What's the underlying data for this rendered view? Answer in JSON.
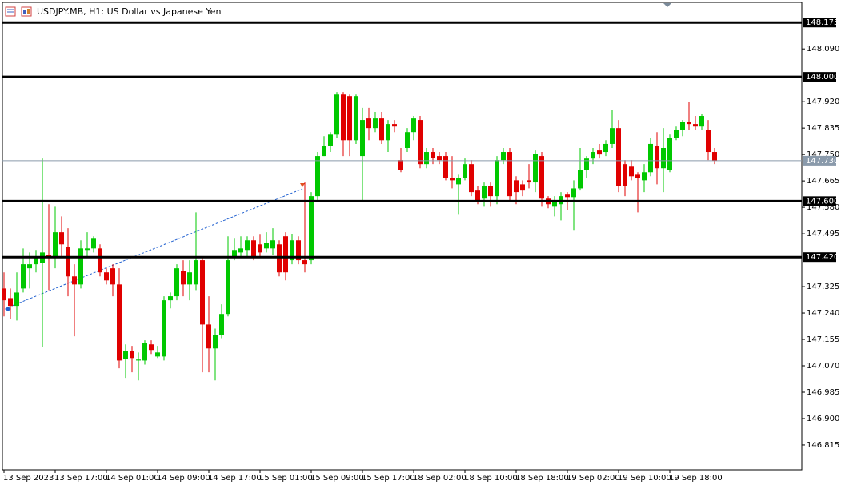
{
  "chart_data": {
    "type": "candlestick",
    "title": "USDJPY.MB, H1:  US Dollar vs Japanese Yen",
    "categories": [
      "13 Sep 2023",
      null,
      null,
      null,
      null,
      null,
      null,
      null,
      "13 Sep 17:00",
      null,
      null,
      null,
      null,
      null,
      null,
      null,
      "14 Sep 01:00",
      null,
      null,
      null,
      null,
      null,
      null,
      null,
      "14 Sep 09:00",
      null,
      null,
      null,
      null,
      null,
      null,
      null,
      "14 Sep 17:00",
      null,
      null,
      null,
      null,
      null,
      null,
      null,
      "15 Sep 01:00",
      null,
      null,
      null,
      null,
      null,
      null,
      null,
      "15 Sep 09:00",
      null,
      null,
      null,
      null,
      null,
      null,
      null,
      "15 Sep 17:00",
      null,
      null,
      null,
      null,
      null,
      null,
      null,
      "18 Sep 02:00",
      null,
      null,
      null,
      null,
      null,
      null,
      null,
      "18 Sep 10:00",
      null,
      null,
      null,
      null,
      null,
      null,
      null,
      "18 Sep 18:00",
      null,
      null,
      null,
      null,
      null,
      null,
      null,
      "19 Sep 02:00",
      null,
      null,
      null,
      null,
      null,
      null,
      null,
      "19 Sep 10:00",
      null,
      null,
      null,
      null,
      null,
      null,
      null,
      "19 Sep 18:00",
      null,
      null,
      null,
      null,
      null,
      null,
      null
    ],
    "open": [
      147.319,
      147.288,
      147.263,
      147.319,
      147.384,
      147.397,
      147.402,
      147.428,
      147.417,
      147.5,
      147.453,
      147.358,
      147.332,
      147.443,
      147.448,
      147.448,
      147.371,
      147.384,
      147.332,
      147.093,
      147.118,
      147.087,
      147.087,
      147.139,
      147.1,
      147.1,
      147.281,
      147.294,
      147.376,
      147.332,
      147.332,
      147.41,
      147.203,
      147.126,
      147.17,
      147.237,
      147.422,
      147.435,
      147.443,
      147.474,
      147.461,
      147.448,
      147.448,
      147.461,
      147.487,
      147.41,
      147.474,
      147.41,
      147.41,
      147.616,
      147.745,
      147.778,
      147.814,
      147.943,
      147.938,
      147.796,
      147.745,
      147.866,
      147.835,
      147.866,
      147.796,
      147.848,
      147.732,
      147.771,
      147.822,
      147.861,
      147.719,
      147.758,
      147.745,
      147.745,
      147.675,
      147.654,
      147.675,
      147.719,
      147.634,
      147.608,
      147.649,
      147.616,
      147.732,
      147.758,
      147.667,
      147.654,
      147.667,
      147.66,
      147.745,
      147.608,
      147.582,
      147.59,
      147.621,
      147.613,
      147.641,
      147.701,
      147.737,
      147.763,
      147.758,
      147.784,
      147.835,
      147.719,
      147.711,
      147.685,
      147.667,
      147.693,
      147.778,
      147.706,
      147.701,
      147.804,
      147.83,
      147.856,
      147.848,
      147.84,
      147.83,
      147.758
    ],
    "high": [
      147.371,
      147.319,
      147.371,
      147.448,
      147.435,
      147.443,
      147.737,
      147.59,
      147.582,
      147.551,
      147.513,
      147.397,
      147.474,
      147.5,
      147.487,
      147.461,
      147.384,
      147.397,
      147.384,
      147.139,
      147.134,
      147.113,
      147.152,
      147.152,
      147.134,
      147.294,
      147.306,
      147.397,
      147.41,
      147.41,
      147.564,
      147.422,
      147.294,
      147.19,
      147.268,
      147.487,
      147.479,
      147.487,
      147.487,
      147.487,
      147.492,
      147.5,
      147.513,
      147.474,
      147.5,
      147.495,
      147.487,
      147.66,
      147.629,
      147.758,
      147.809,
      147.822,
      147.951,
      147.951,
      147.943,
      147.943,
      147.9,
      147.9,
      147.887,
      147.887,
      147.861,
      147.861,
      147.771,
      147.835,
      147.874,
      147.874,
      147.771,
      147.771,
      147.758,
      147.758,
      147.745,
      147.685,
      147.737,
      147.732,
      147.649,
      147.66,
      147.66,
      147.745,
      147.771,
      147.771,
      147.68,
      147.667,
      147.719,
      147.763,
      147.758,
      147.616,
      147.616,
      147.629,
      147.629,
      147.667,
      147.771,
      147.745,
      147.771,
      147.784,
      147.796,
      147.892,
      147.861,
      147.732,
      147.732,
      147.693,
      147.719,
      147.804,
      147.822,
      147.835,
      147.814,
      147.84,
      147.861,
      147.92,
      147.874,
      147.881,
      147.861,
      147.771
    ],
    "low": [
      147.229,
      147.221,
      147.216,
      147.306,
      147.319,
      147.371,
      147.131,
      147.314,
      147.384,
      147.422,
      147.294,
      147.165,
      147.319,
      147.422,
      147.435,
      147.358,
      147.332,
      147.294,
      147.062,
      147.031,
      147.049,
      147.023,
      147.074,
      147.108,
      147.095,
      147.087,
      147.255,
      147.281,
      147.294,
      147.281,
      147.314,
      147.049,
      147.049,
      147.023,
      147.159,
      147.229,
      147.41,
      147.422,
      147.422,
      147.41,
      147.417,
      147.435,
      147.428,
      147.358,
      147.345,
      147.397,
      147.397,
      147.371,
      147.397,
      147.603,
      147.745,
      147.758,
      147.804,
      147.745,
      147.745,
      147.784,
      147.603,
      147.796,
      147.822,
      147.784,
      147.758,
      147.822,
      147.693,
      147.758,
      147.796,
      147.706,
      147.706,
      147.719,
      147.719,
      147.667,
      147.641,
      147.556,
      147.667,
      147.616,
      147.59,
      147.582,
      147.582,
      147.59,
      147.719,
      147.603,
      147.59,
      147.616,
      147.641,
      147.629,
      147.582,
      147.577,
      147.551,
      147.538,
      147.572,
      147.505,
      147.634,
      147.675,
      147.719,
      147.737,
      147.745,
      147.771,
      147.629,
      147.616,
      147.667,
      147.564,
      147.629,
      147.68,
      147.654,
      147.629,
      147.693,
      147.796,
      147.809,
      147.83,
      147.83,
      147.83,
      147.732,
      147.719
    ],
    "close": [
      147.281,
      147.263,
      147.306,
      147.397,
      147.397,
      147.422,
      147.435,
      147.417,
      147.5,
      147.461,
      147.358,
      147.332,
      147.448,
      147.448,
      147.479,
      147.371,
      147.345,
      147.332,
      147.087,
      147.118,
      147.095,
      147.09,
      147.144,
      147.121,
      147.113,
      147.281,
      147.294,
      147.384,
      147.332,
      147.371,
      147.41,
      147.203,
      147.126,
      147.17,
      147.237,
      147.41,
      147.443,
      147.448,
      147.474,
      147.422,
      147.435,
      147.466,
      147.474,
      147.371,
      147.371,
      147.474,
      147.41,
      147.397,
      147.616,
      147.745,
      147.778,
      147.814,
      147.943,
      147.796,
      147.796,
      147.938,
      147.861,
      147.835,
      147.866,
      147.796,
      147.848,
      147.84,
      147.701,
      147.822,
      147.866,
      147.719,
      147.758,
      147.74,
      147.732,
      147.675,
      147.667,
      147.675,
      147.719,
      147.629,
      147.603,
      147.649,
      147.616,
      147.732,
      147.758,
      147.616,
      147.629,
      147.634,
      147.66,
      147.752,
      147.608,
      147.59,
      147.603,
      147.616,
      147.613,
      147.641,
      147.701,
      147.737,
      147.758,
      147.75,
      147.784,
      147.835,
      147.649,
      147.649,
      147.68,
      147.675,
      147.693,
      147.784,
      147.706,
      147.771,
      147.804,
      147.83,
      147.856,
      147.848,
      147.84,
      147.874,
      147.758,
      147.73
    ],
    "up_color": "#00c800",
    "down_color": "#e00000",
    "ylim": [
      146.735,
      148.24
    ],
    "yticks": [
      146.815,
      {
        "value": 146.9,
        "label": "146.900"
      },
      146.985,
      {
        "value": 147.07,
        "label": "147.070"
      },
      147.155,
      {
        "value": 147.24,
        "label": "147.240"
      },
      147.325,
      147.495,
      {
        "value": 147.58,
        "label": "147.580"
      },
      147.665,
      {
        "value": 147.75,
        "label": "147.750"
      },
      147.835,
      {
        "value": 147.92,
        "label": "147.920"
      },
      {
        "value": 148.09,
        "label": "148.090"
      }
    ],
    "levels": [
      {
        "value": 148.175,
        "label": "148.175"
      },
      {
        "value": 148.0,
        "label": "148.000"
      },
      {
        "value": 147.6,
        "label": "147.600"
      },
      {
        "value": 147.42,
        "label": "147.420"
      }
    ],
    "level_color": "#000000",
    "current_price": {
      "value": 147.73,
      "label": "147.730"
    },
    "current_price_color": "#8a9aab"
  }
}
